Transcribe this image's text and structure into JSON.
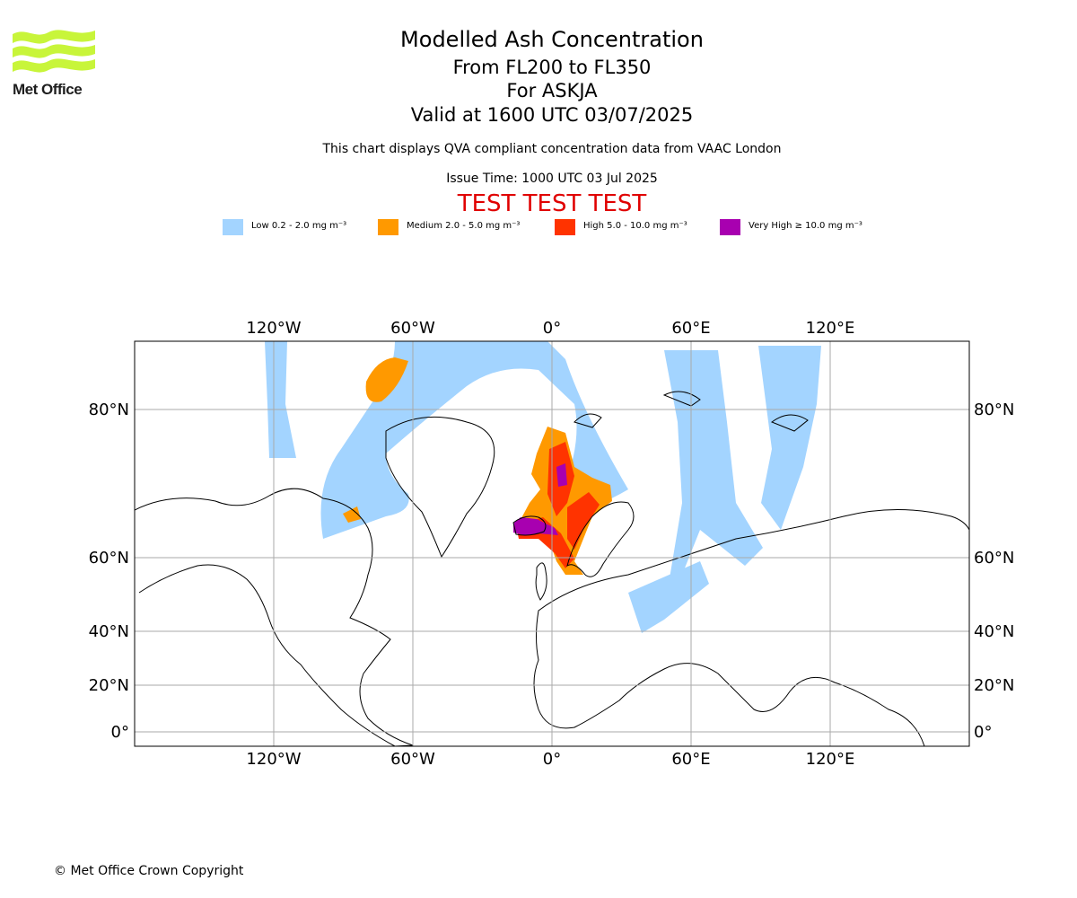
{
  "header": {
    "logo_text": "Met Office",
    "title": "Modelled Ash Concentration",
    "flight_levels": "From FL200 to FL350",
    "volcano": "For ASKJA",
    "valid_time": "Valid at 1600 UTC 03/07/2025",
    "note": "This chart displays QVA compliant concentration data from VAAC London",
    "issue_time": "Issue Time: 1000 UTC 03 Jul 2025",
    "test_banner": "TEST TEST TEST"
  },
  "legend": [
    {
      "label": "Low 0.2 - 2.0 mg m⁻³",
      "color": "#a3d4ff"
    },
    {
      "label": "Medium 2.0 - 5.0 mg m⁻³",
      "color": "#ff9900"
    },
    {
      "label": "High 5.0 - 10.0 mg m⁻³",
      "color": "#ff3300"
    },
    {
      "label": "Very High ≥ 10.0 mg m⁻³",
      "color": "#a800b0"
    }
  ],
  "map": {
    "lon_labels": [
      "120°W",
      "60°W",
      "0°",
      "60°E",
      "120°E"
    ],
    "lat_labels": [
      "80°N",
      "60°N",
      "40°N",
      "20°N",
      "0°"
    ],
    "grid_color": "#aaaaaa"
  },
  "footer": {
    "copyright": "© Met Office Crown Copyright"
  }
}
